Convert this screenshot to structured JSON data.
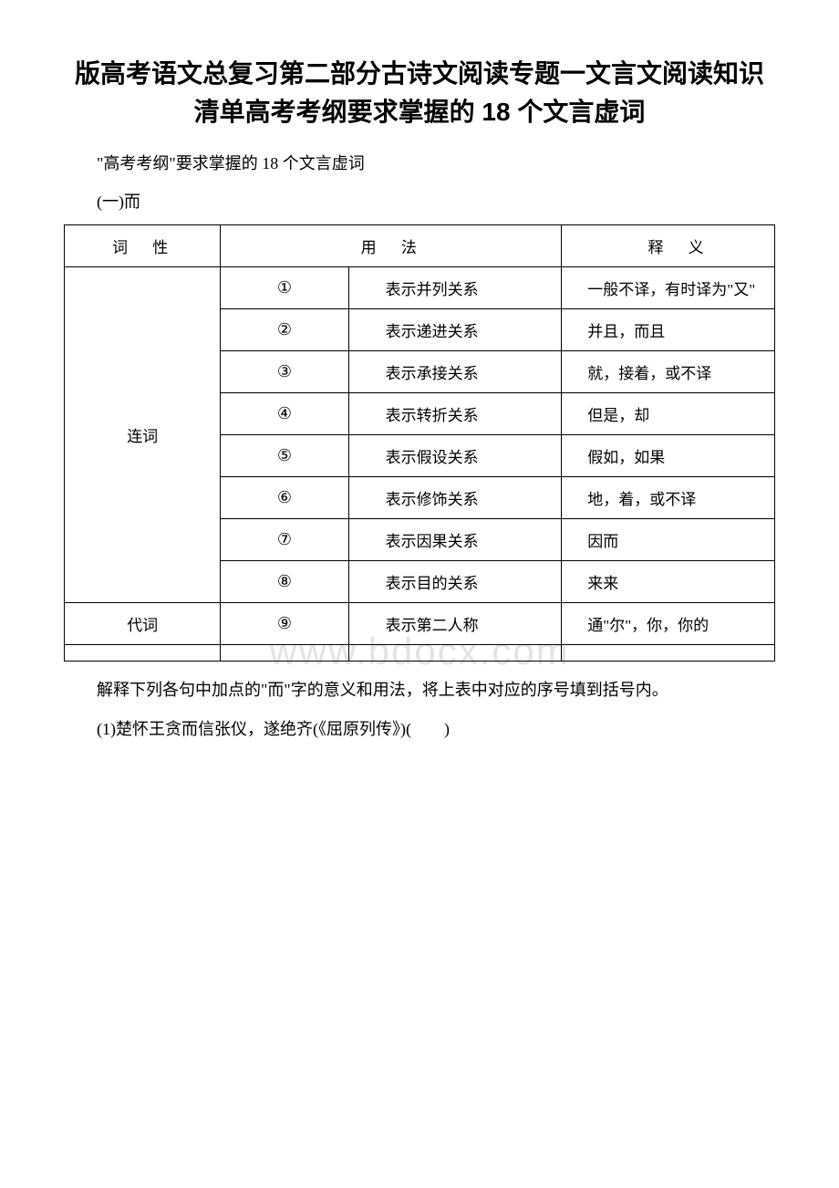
{
  "title": "版高考语文总复习第二部分古诗文阅读专题一文言文阅读知识清单高考考纲要求掌握的 18 个文言虚词",
  "intro": "\"高考考纲\"要求掌握的 18 个文言虚词",
  "section_label": "(一)而",
  "table": {
    "headers": [
      "词　性",
      "用　法",
      "",
      "释　义"
    ],
    "groups": [
      {
        "wordtype": "连词",
        "rows": [
          {
            "usage": "①",
            "desc": "表示并列关系",
            "meaning": "一般不译，有时译为\"又\""
          },
          {
            "usage": "②",
            "desc": "表示递进关系",
            "meaning": "并且，而且"
          },
          {
            "usage": "③",
            "desc": "表示承接关系",
            "meaning": "就，接着，或不译"
          },
          {
            "usage": "④",
            "desc": "表示转折关系",
            "meaning": "但是，却"
          },
          {
            "usage": "⑤",
            "desc": "表示假设关系",
            "meaning": "假如，如果"
          },
          {
            "usage": "⑥",
            "desc": "表示修饰关系",
            "meaning": "地，着，或不译"
          },
          {
            "usage": "⑦",
            "desc": "表示因果关系",
            "meaning": "因而"
          },
          {
            "usage": "⑧",
            "desc": "表示目的关系",
            "meaning": "来来"
          }
        ]
      },
      {
        "wordtype": "代词",
        "rows": [
          {
            "usage": "⑨",
            "desc": "表示第二人称",
            "meaning": "通\"尔\"，你，你的"
          }
        ]
      }
    ]
  },
  "after_paragraphs": [
    "解释下列各句中加点的\"而\"字的意义和用法，将上表中对应的序号填到括号内。",
    "(1)楚怀王贪而信张仪，遂绝齐(《屈原列传》)(　　)"
  ],
  "watermark": "www.bdocx.com"
}
